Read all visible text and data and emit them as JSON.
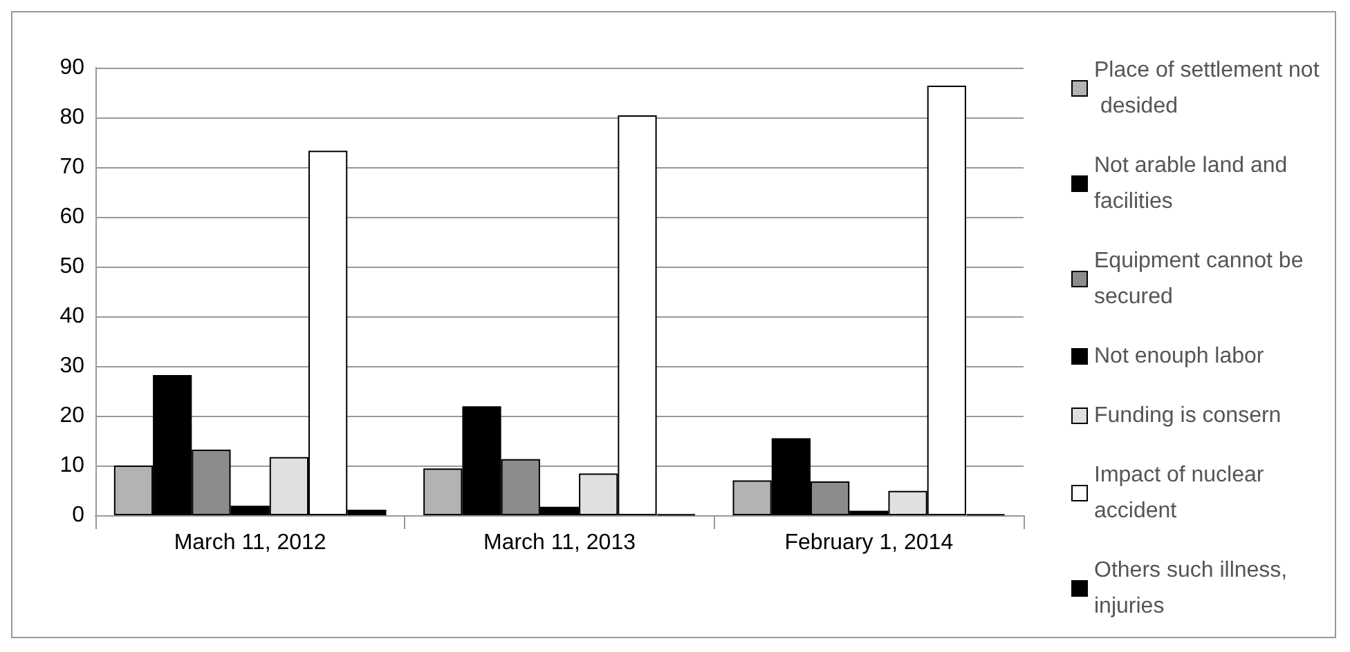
{
  "chart_data": {
    "type": "bar",
    "categories": [
      "March 11, 2012",
      "March 11, 2013",
      "February 1, 2014"
    ],
    "series": [
      {
        "name": "Place of settlement not desided",
        "color": "#b3b3b3",
        "values": [
          10,
          9.4,
          7
        ]
      },
      {
        "name": "Not arable land and facilities",
        "color": "#000000",
        "values": [
          28.2,
          21.9,
          15.5
        ]
      },
      {
        "name": "Equipment cannot be secured",
        "color": "#8c8c8c",
        "values": [
          13.2,
          11.3,
          6.8
        ]
      },
      {
        "name": "Not enouph labor",
        "color": "#000000",
        "values": [
          1.9,
          1.7,
          0.9
        ]
      },
      {
        "name": "Funding is consern",
        "color": "#e0e0e0",
        "values": [
          11.7,
          8.4,
          4.9
        ]
      },
      {
        "name": "Impact of nuclear accident",
        "color": "#ffffff",
        "values": [
          73.3,
          80.4,
          86.4
        ]
      },
      {
        "name": "Others such illness, injuries",
        "color": "#000000",
        "values": [
          1.1,
          0.2,
          0.2
        ]
      }
    ],
    "ylim": [
      0,
      90
    ],
    "yticks": [
      0,
      10,
      20,
      30,
      40,
      50,
      60,
      70,
      80,
      90
    ],
    "grid": "y",
    "legend": "right"
  }
}
